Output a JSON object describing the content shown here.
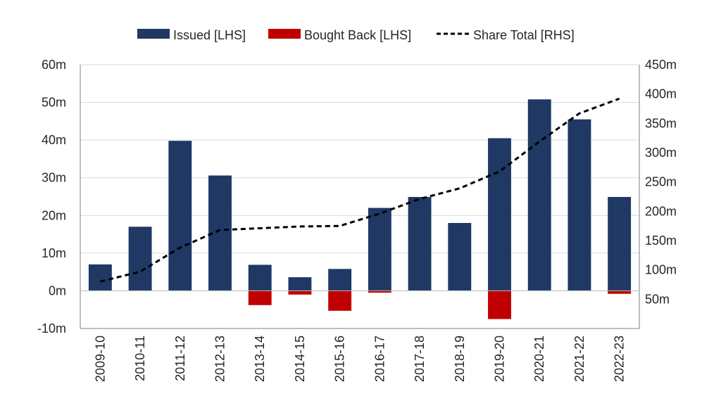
{
  "chart_data": {
    "type": "bar",
    "categories": [
      "2009-10",
      "2010-11",
      "2011-12",
      "2012-13",
      "2013-14",
      "2014-15",
      "2015-16",
      "2016-17",
      "2017-18",
      "2018-19",
      "2019-20",
      "2020-21",
      "2021-22",
      "2022-23"
    ],
    "series": [
      {
        "name": "Issued [LHS]",
        "type": "bar",
        "axis": "left",
        "color": "#1f3864",
        "values": [
          7,
          17,
          39.8,
          30.6,
          6.9,
          3.6,
          5.8,
          22,
          24.9,
          18,
          40.5,
          50.8,
          45.5,
          24.9
        ]
      },
      {
        "name": "Bought Back [LHS]",
        "type": "bar",
        "axis": "left",
        "color": "#c00000",
        "values": [
          0,
          0,
          0,
          0,
          -3.8,
          -1,
          -5.3,
          -0.5,
          0,
          0,
          -7.5,
          0,
          0,
          -0.8
        ]
      },
      {
        "name": "Share Total [RHS]",
        "type": "line",
        "axis": "right",
        "style": "dashed",
        "color": "#000000",
        "values": [
          80,
          97,
          138,
          168,
          171,
          174,
          175,
          196,
          221,
          239,
          268,
          319,
          367,
          392
        ]
      }
    ],
    "y_left": {
      "min": -10,
      "max": 60,
      "step": 10,
      "tick_labels": [
        "-10m",
        "0m",
        "10m",
        "20m",
        "30m",
        "40m",
        "50m",
        "60m"
      ]
    },
    "y_right": {
      "min": 0,
      "max": 450,
      "step": 50,
      "tick_labels": [
        "",
        "50m",
        "100m",
        "150m",
        "200m",
        "250m",
        "300m",
        "350m",
        "400m",
        "450m"
      ]
    },
    "legend": {
      "position": "top-center",
      "entries": [
        "Issued [LHS]",
        "Bought Back [LHS]",
        "Share Total [RHS]"
      ]
    },
    "grid": "horizontal",
    "title": "",
    "xlabel": "",
    "ylabel": ""
  }
}
